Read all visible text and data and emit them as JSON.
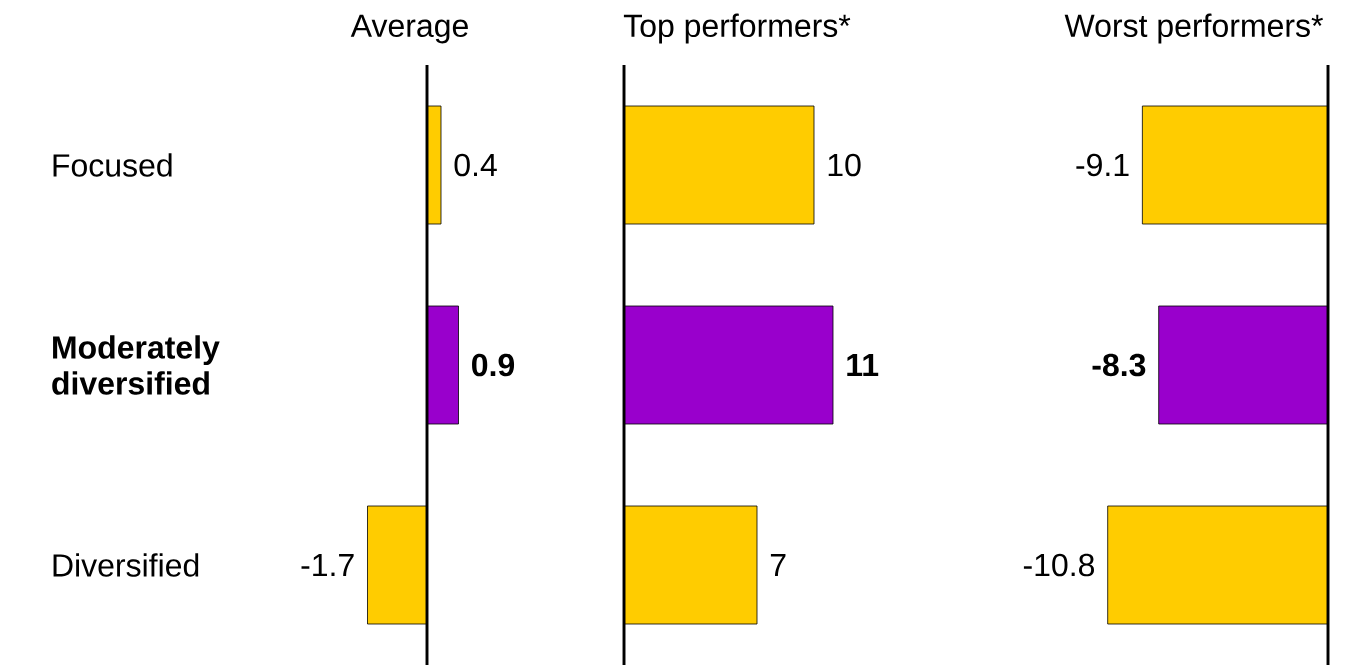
{
  "chart_data": [
    {
      "type": "bar",
      "orientation": "horizontal",
      "title": "Average",
      "categories": [
        "Focused",
        "**Moderately diversified**",
        "Diversified"
      ],
      "values": [
        0.4,
        0.9,
        -1.7
      ],
      "value_labels": [
        "0.4",
        "**0.9**",
        "-1.7"
      ],
      "colors": [
        "#ffcc00",
        "#9900cc",
        "#ffcc00"
      ],
      "tick_labels": "y"
    },
    {
      "type": "bar",
      "orientation": "horizontal",
      "title": "Top performers*",
      "categories": [
        null,
        null,
        null
      ],
      "values": [
        10,
        11,
        7
      ],
      "value_labels": [
        "10",
        "**11**",
        "7"
      ],
      "colors": [
        "#ffcc00",
        "#9900cc",
        "#ffcc00"
      ],
      "tick_labels": false
    },
    {
      "type": "bar",
      "orientation": "horizontal",
      "title": "Worst performers*",
      "categories": [
        null,
        null,
        null
      ],
      "values": [
        -9.1,
        -8.3,
        -10.8
      ],
      "value_labels": [
        "-9.1",
        "**-8.3**",
        "-10.8"
      ],
      "colors": [
        "#ffcc00",
        "#9900cc",
        "#ffcc00"
      ],
      "tick_labels": false
    }
  ]
}
